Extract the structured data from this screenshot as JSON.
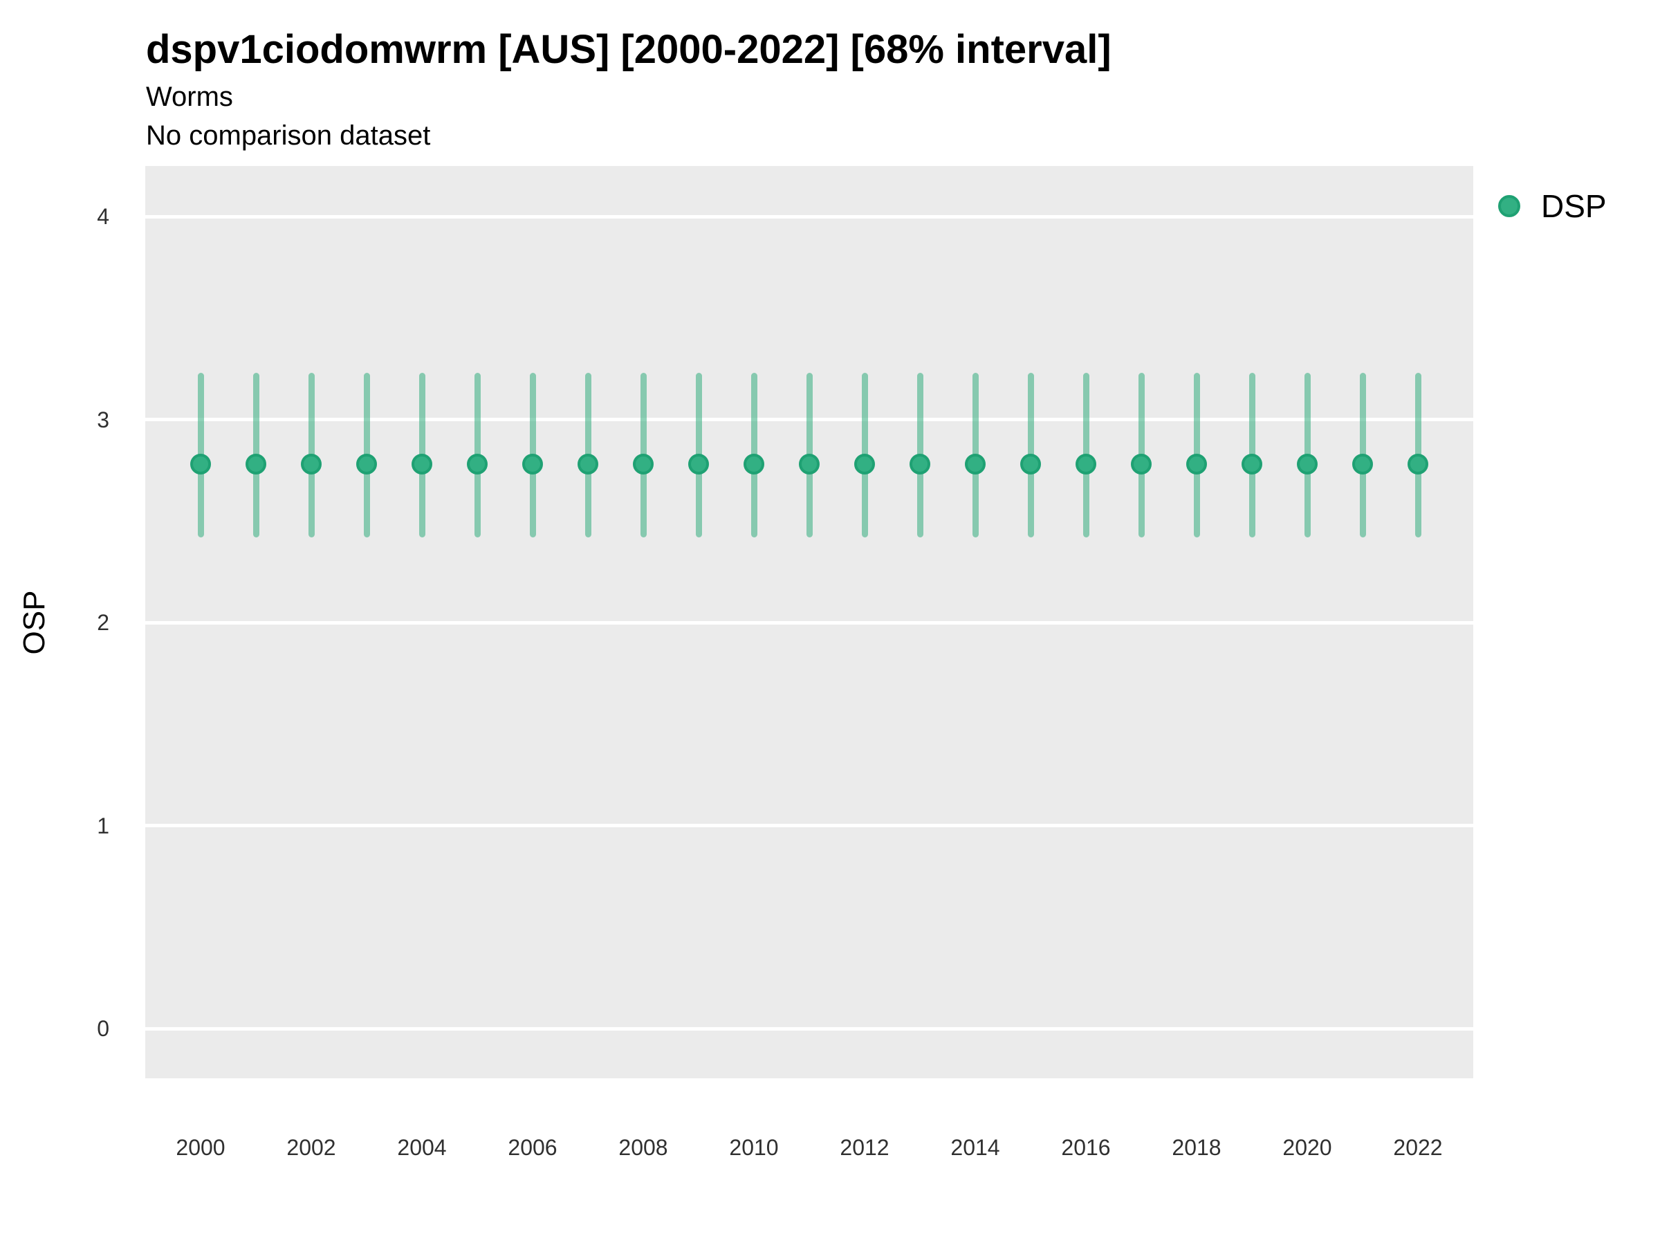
{
  "header": {
    "title": "dspv1ciodomwrm [AUS] [2000-2022] [68% interval]",
    "subtitle": "Worms",
    "comparison_note": "No comparison dataset"
  },
  "legend": {
    "position": "right-top",
    "items": [
      {
        "label": "DSP",
        "marker": "circle-icon",
        "fill": "#32b083",
        "stroke": "#1fa173"
      }
    ]
  },
  "colors": {
    "panel_background": "#EBEBEB",
    "gridline": "#FFFFFF",
    "interval_line": "rgba(51,173,125,0.55)",
    "point_fill": "#32b083",
    "point_stroke": "#1fa173",
    "axis_text": "#303030",
    "title_text": "#000000"
  },
  "chart_data": {
    "type": "pointrange",
    "title": "dspv1ciodomwrm [AUS] [2000-2022] [68% interval]",
    "subtitle": "Worms",
    "note": "No comparison dataset",
    "interval": "68%",
    "xlabel": "",
    "ylabel": "OSP",
    "legend_position": "right",
    "grid": "horizontal-major-only",
    "x": [
      2000,
      2001,
      2002,
      2003,
      2004,
      2005,
      2006,
      2007,
      2008,
      2009,
      2010,
      2011,
      2012,
      2013,
      2014,
      2015,
      2016,
      2017,
      2018,
      2019,
      2020,
      2021,
      2022
    ],
    "series": [
      {
        "name": "DSP",
        "mid": [
          2.78,
          2.78,
          2.78,
          2.78,
          2.78,
          2.78,
          2.78,
          2.78,
          2.78,
          2.78,
          2.78,
          2.78,
          2.78,
          2.78,
          2.78,
          2.78,
          2.78,
          2.78,
          2.78,
          2.78,
          2.78,
          2.78,
          2.78
        ],
        "lo": [
          2.42,
          2.42,
          2.42,
          2.42,
          2.42,
          2.42,
          2.42,
          2.42,
          2.42,
          2.42,
          2.42,
          2.42,
          2.42,
          2.42,
          2.42,
          2.42,
          2.42,
          2.42,
          2.42,
          2.42,
          2.42,
          2.42,
          2.42
        ],
        "hi": [
          3.23,
          3.23,
          3.23,
          3.23,
          3.23,
          3.23,
          3.23,
          3.23,
          3.23,
          3.23,
          3.23,
          3.23,
          3.23,
          3.23,
          3.23,
          3.23,
          3.23,
          3.23,
          3.23,
          3.23,
          3.23,
          3.23,
          3.23
        ]
      }
    ],
    "y_ticks": [
      0,
      1,
      2,
      3,
      4
    ],
    "x_ticks": [
      2000,
      2002,
      2004,
      2006,
      2008,
      2010,
      2012,
      2014,
      2016,
      2018,
      2020,
      2022
    ],
    "ylim": [
      -0.25,
      4.25
    ],
    "xlim": [
      1999,
      2023
    ]
  }
}
